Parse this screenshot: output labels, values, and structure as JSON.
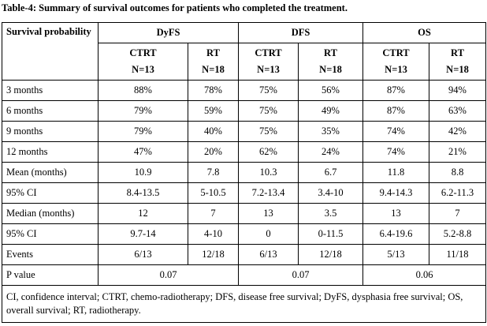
{
  "caption": "Table-4: Summary of survival outcomes for patients who completed the treatment.",
  "header": {
    "corner": "Survival probability",
    "groups": [
      "DyFS",
      "DFS",
      "OS"
    ],
    "sub": [
      {
        "arm": "CTRT",
        "n": "N=13"
      },
      {
        "arm": "RT",
        "n": "N=18"
      },
      {
        "arm": "CTRT",
        "n": "N=13"
      },
      {
        "arm": "RT",
        "n": "N=18"
      },
      {
        "arm": "CTRT",
        "n": "N=13"
      },
      {
        "arm": "RT",
        "n": "N=18"
      }
    ]
  },
  "rows": [
    {
      "label": "3 months",
      "values": [
        "88%",
        "78%",
        "75%",
        "56%",
        "87%",
        "94%"
      ]
    },
    {
      "label": "6 months",
      "values": [
        "79%",
        "59%",
        "75%",
        "49%",
        "87%",
        "63%"
      ]
    },
    {
      "label": "9 months",
      "values": [
        "79%",
        "40%",
        "75%",
        "35%",
        "74%",
        "42%"
      ]
    },
    {
      "label": "12 months",
      "values": [
        "47%",
        "20%",
        "62%",
        "24%",
        "74%",
        "21%"
      ]
    },
    {
      "label": "Mean (months)",
      "values": [
        "10.9",
        "7.8",
        "10.3",
        "6.7",
        "11.8",
        "8.8"
      ]
    },
    {
      "label": "95% CI",
      "values": [
        "8.4-13.5",
        "5-10.5",
        "7.2-13.4",
        "3.4-10",
        "9.4-14.3",
        "6.2-11.3"
      ]
    },
    {
      "label": "Median (months)",
      "values": [
        "12",
        "7",
        "13",
        "3.5",
        "13",
        "7"
      ]
    },
    {
      "label": "95% CI",
      "values": [
        "9.7-14",
        "4-10",
        "0",
        "0-11.5",
        "6.4-19.6",
        "5.2-8.8"
      ]
    },
    {
      "label": "Events",
      "values": [
        "6/13",
        "12/18",
        "6/13",
        "12/18",
        "5/13",
        "11/18"
      ]
    }
  ],
  "pvalue": {
    "label": "P value",
    "values": [
      "0.07",
      "0.07",
      "0.06"
    ]
  },
  "footnote": "CI, confidence interval; CTRT, chemo-radiotherapy; DFS, disease free survival; DyFS, dysphasia free survival; OS, overall survival; RT, radiotherapy."
}
